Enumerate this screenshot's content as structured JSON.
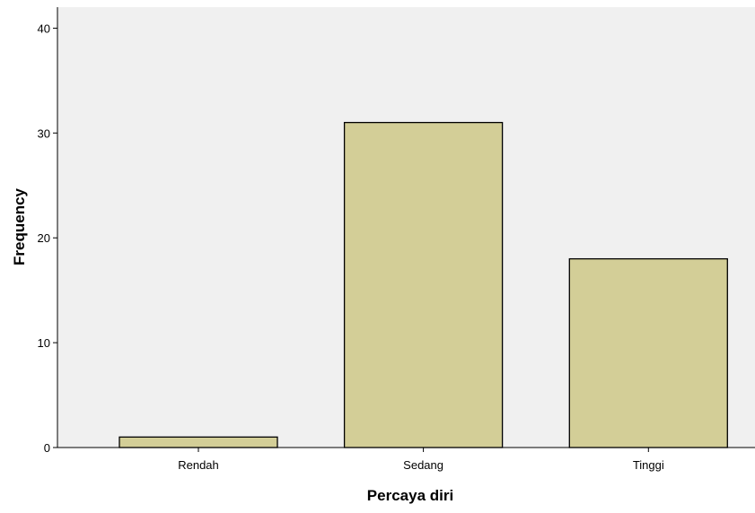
{
  "chart_data": {
    "type": "bar",
    "title": "",
    "xlabel": "Percaya diri",
    "ylabel": "Frequency",
    "categories": [
      "Rendah",
      "Sedang",
      "Tinggi"
    ],
    "values": [
      1,
      31,
      18
    ],
    "ylim": [
      0,
      42
    ],
    "yticks": [
      0,
      10,
      20,
      30,
      40
    ],
    "grid": false,
    "colors": {
      "bar_fill": "#d3ce97",
      "bar_stroke": "#000000",
      "plot_background": "#f0f0f0"
    }
  }
}
